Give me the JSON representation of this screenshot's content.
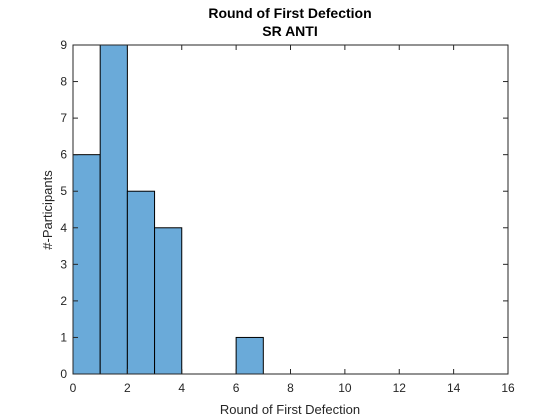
{
  "chart_data": {
    "type": "bar",
    "title": "Round of First Defection",
    "subtitle": "SR ANTI",
    "xlabel": "Round of First Defection",
    "ylabel": "#-Participants",
    "xlim": [
      0,
      16
    ],
    "ylim": [
      0,
      9
    ],
    "xticks": [
      0,
      2,
      4,
      6,
      8,
      10,
      12,
      14,
      16
    ],
    "yticks": [
      0,
      1,
      2,
      3,
      4,
      5,
      6,
      7,
      8,
      9
    ],
    "bin_width": 1,
    "bins": [
      {
        "x0": 0,
        "x1": 1,
        "count": 6
      },
      {
        "x0": 1,
        "x1": 2,
        "count": 9
      },
      {
        "x0": 2,
        "x1": 3,
        "count": 5
      },
      {
        "x0": 3,
        "x1": 4,
        "count": 4
      },
      {
        "x0": 6,
        "x1": 7,
        "count": 1
      }
    ],
    "grid": false,
    "colors": {
      "bar_fill": "#6aaad9",
      "bar_edge": "#000000",
      "axis": "#262626"
    }
  }
}
